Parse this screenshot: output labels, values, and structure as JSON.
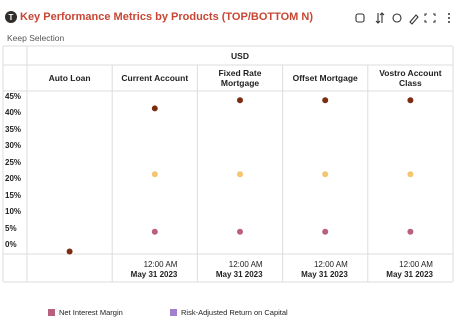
{
  "header": {
    "title": "Key Performance Metrics by Products (TOP/BOTTOM N)",
    "subtitle": "Keep Selection"
  },
  "chart_data": {
    "type": "scatter",
    "column_group": "USD",
    "categories": [
      "Auto Loan",
      "Current Account",
      "Fixed Rate Mortgage",
      "Offset Mortgage",
      "Vostro Account Class"
    ],
    "x_labels": [
      null,
      {
        "time": "12:00 AM",
        "date": "May 31 2023"
      },
      {
        "time": "12:00 AM",
        "date": "May 31 2023"
      },
      {
        "time": "12:00 AM",
        "date": "May 31 2023"
      },
      {
        "time": "12:00 AM",
        "date": "May 31 2023"
      }
    ],
    "series": [
      {
        "color": "#7b2d10",
        "values": [
          -2,
          41.5,
          44,
          44,
          44
        ]
      },
      {
        "color": "#f7c46f",
        "values": [
          null,
          21.5,
          21.5,
          21.5,
          21.5
        ]
      },
      {
        "color": "#b8607d",
        "values": [
          null,
          4,
          4,
          4,
          4
        ]
      }
    ],
    "legend": [
      {
        "name": "Net Interest Margin",
        "color": "#b8607d"
      },
      {
        "name": "Risk-Adjusted Return on Capital",
        "color": "#a07fcf"
      }
    ],
    "ylim": [
      -2.75,
      46.8
    ],
    "yticks": [
      {
        "value": 0,
        "label": "0%"
      },
      {
        "value": 5,
        "label": "5%"
      },
      {
        "value": 10,
        "label": "10%"
      },
      {
        "value": 15,
        "label": "15%"
      },
      {
        "value": 20,
        "label": "20%"
      },
      {
        "value": 25,
        "label": "25%"
      },
      {
        "value": 30,
        "label": "30%"
      },
      {
        "value": 35,
        "label": "35%"
      },
      {
        "value": 40,
        "label": "40%"
      },
      {
        "value": 45,
        "label": "45%"
      }
    ],
    "grid": false
  }
}
